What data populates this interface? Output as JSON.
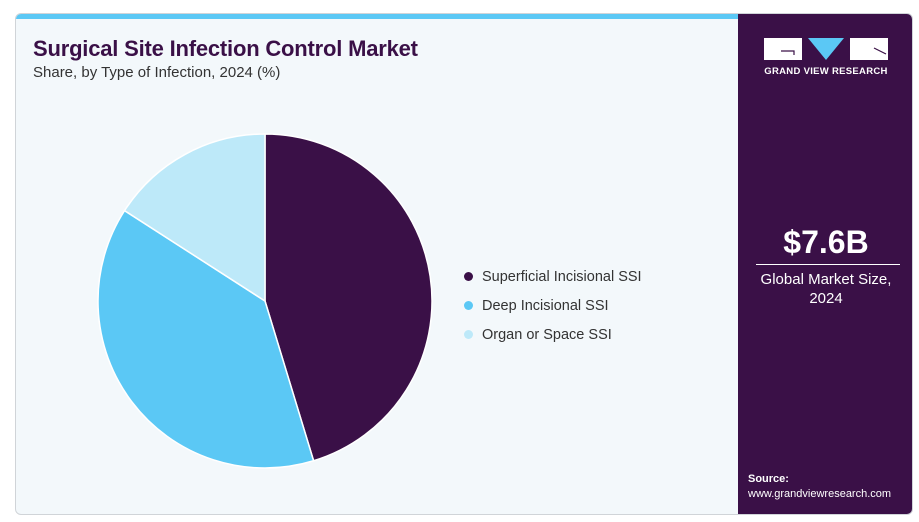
{
  "header": {
    "title": "Surgical Site Infection Control Market",
    "subtitle": "Share, by Type of Infection, 2024 (%)"
  },
  "sidebar": {
    "logo_text": "GRAND VIEW RESEARCH",
    "market_size": "$7.6B",
    "market_caption_line1": "Global Market Size,",
    "market_caption_line2": "2024",
    "source_label": "Source:",
    "source_url": "www.grandviewresearch.com"
  },
  "colors": {
    "accent": "#5bc8f5",
    "brand": "#3a1047"
  },
  "chart_data": {
    "type": "pie",
    "title": "Surgical Site Infection Control Market",
    "subtitle": "Share, by Type of Infection, 2024 (%)",
    "legend_position": "right",
    "categories": [
      "Superficial Incisional SSI",
      "Deep Incisional SSI",
      "Organ or Space SSI"
    ],
    "values": [
      45.3,
      38.8,
      15.9
    ],
    "colors": [
      "#3a1047",
      "#5bc8f5",
      "#bde9f9"
    ]
  }
}
